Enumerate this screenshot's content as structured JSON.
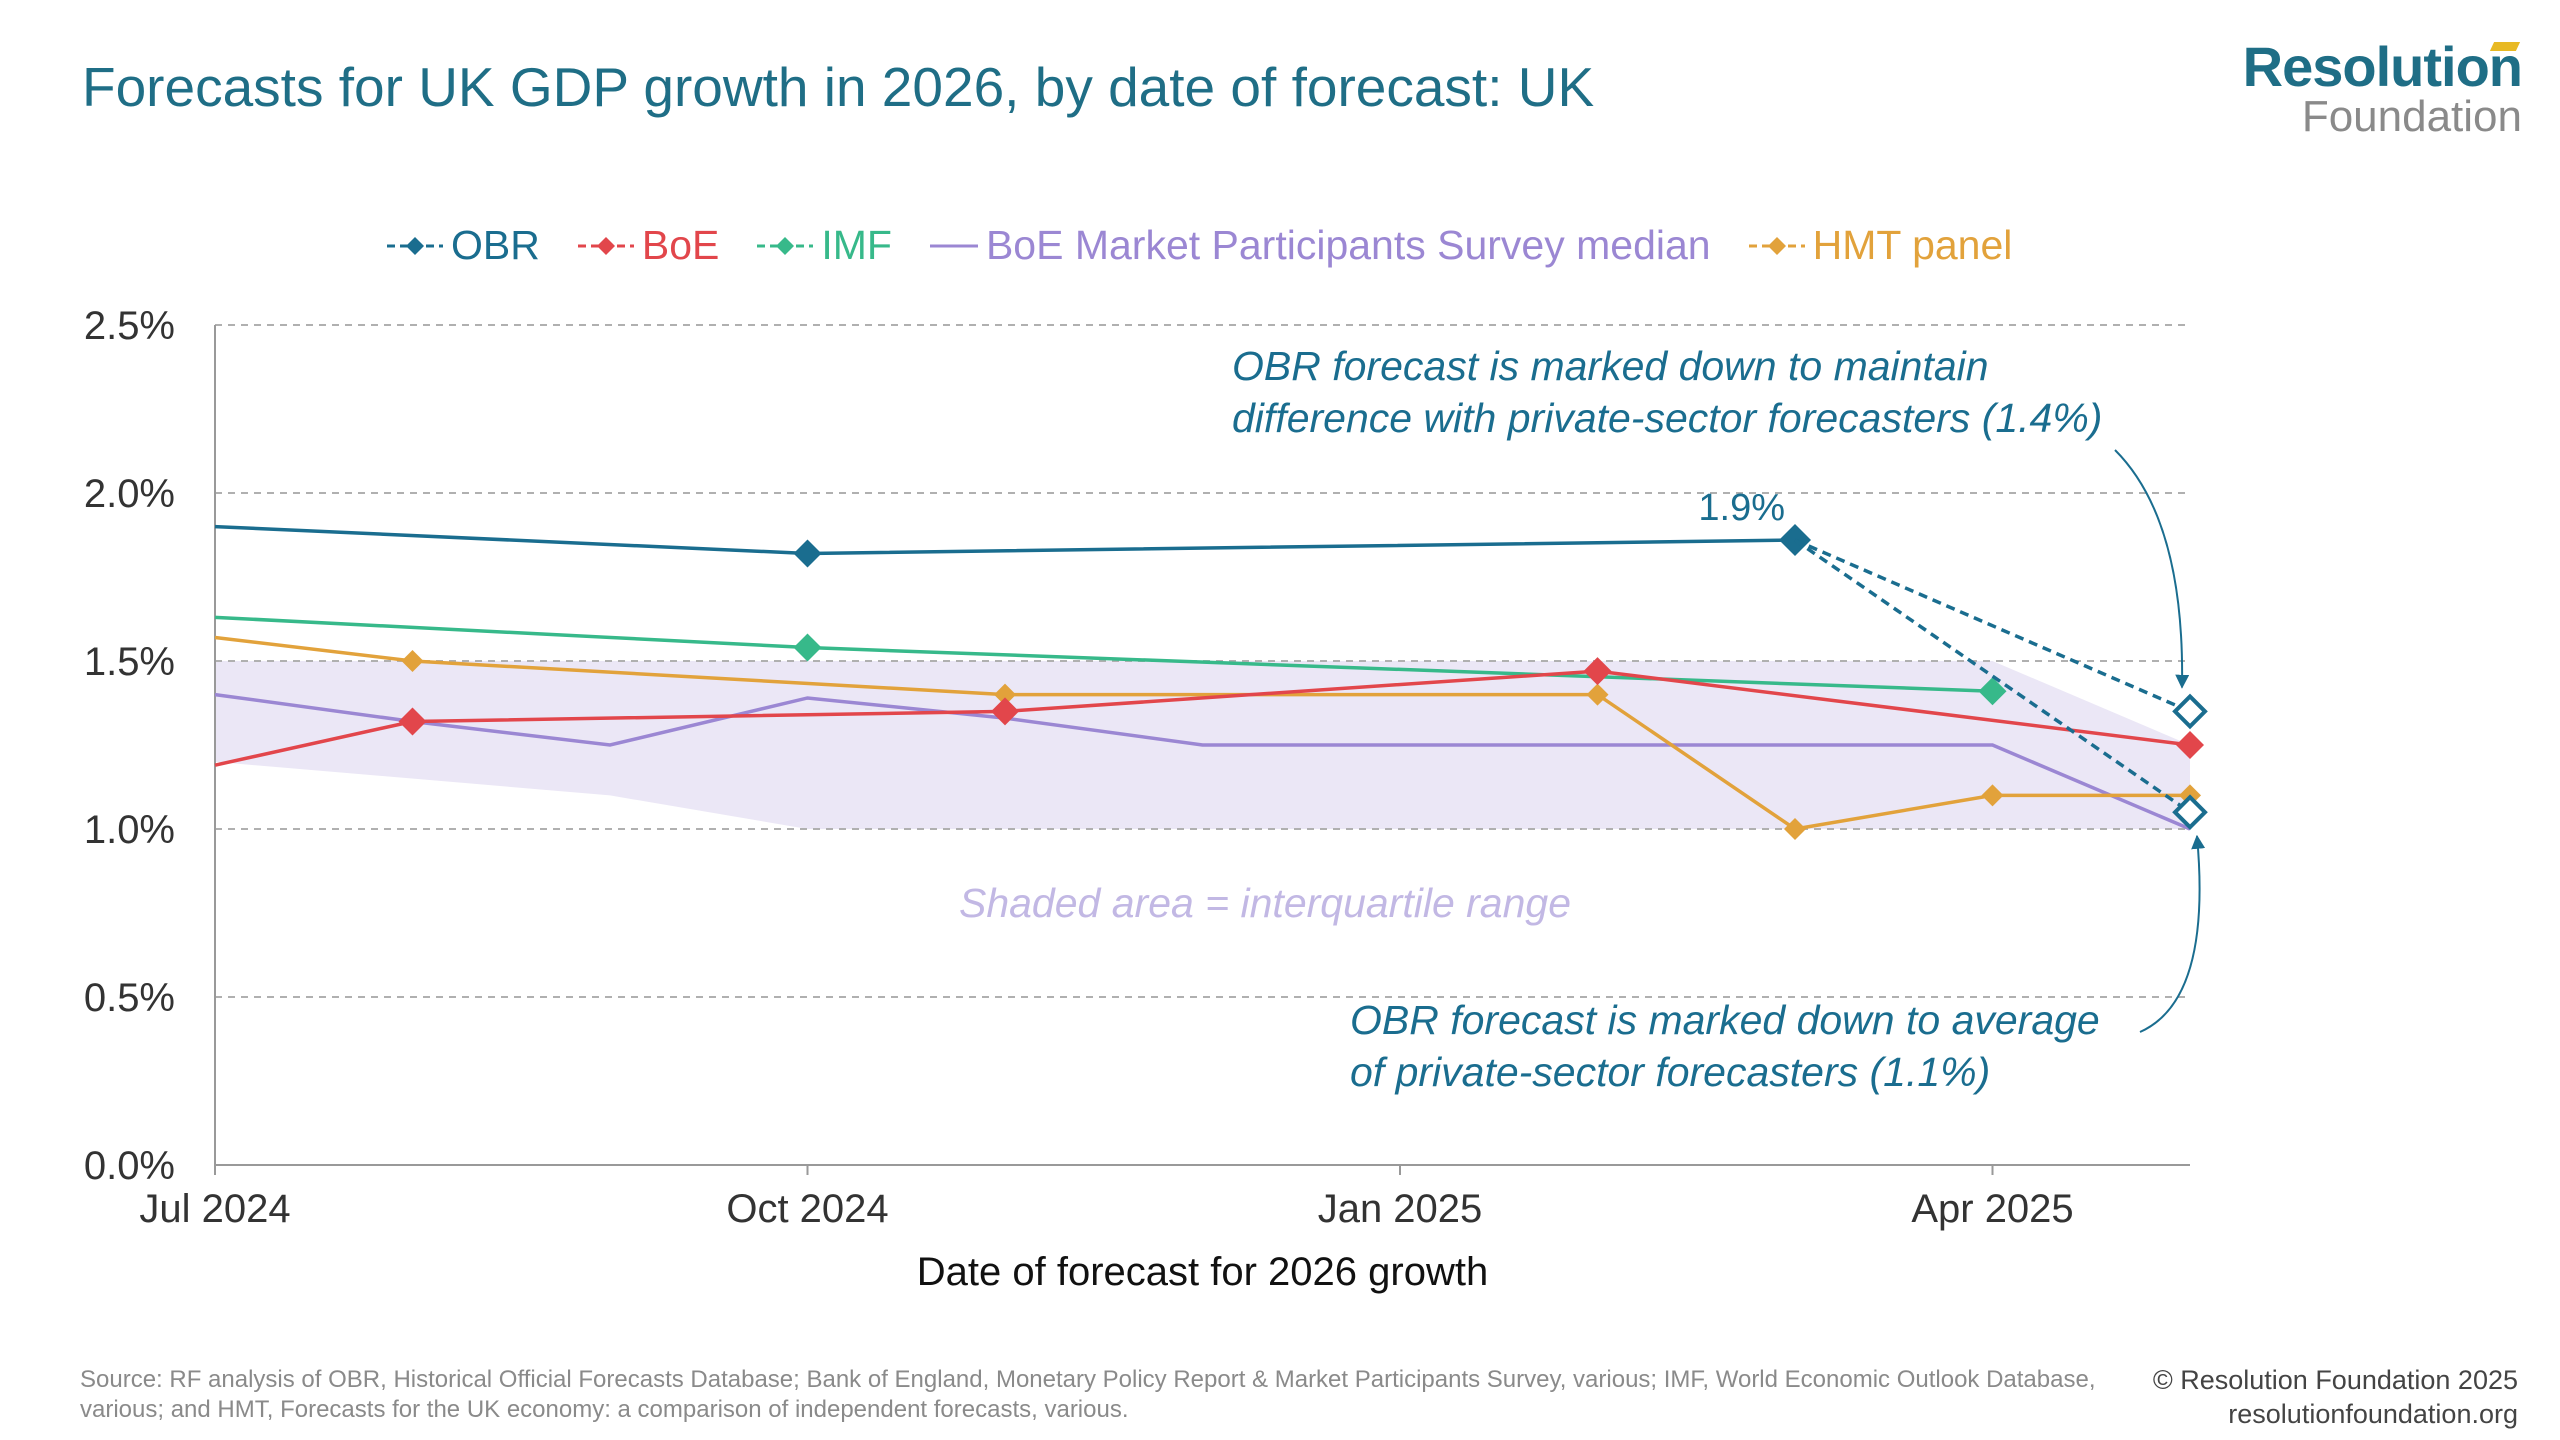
{
  "title": "Forecasts for UK GDP growth in 2026, by date of forecast: UK",
  "logo": {
    "line1": "Resolution",
    "line2": "Foundation"
  },
  "colors": {
    "obr": "#1a6d8f",
    "boe": "#e2464b",
    "imf": "#37b98a",
    "survey": "#9b87d3",
    "hmt": "#e2a23b",
    "shade": "#ebe7f6",
    "annotation": "#1a6d8f",
    "axis_text": "#333333",
    "grid": "#b0b0b0"
  },
  "chart_data": {
    "type": "line",
    "title": "Forecasts for UK GDP growth in 2026, by date of forecast: UK",
    "xlabel": "Date of forecast for 2026 growth",
    "ylabel": "",
    "x_ticks": [
      "Jul 2024",
      "Oct 2024",
      "Jan 2025",
      "Apr 2025"
    ],
    "x_tick_dates": [
      "2024-07",
      "2024-10",
      "2025-01",
      "2025-04"
    ],
    "x_range": [
      "2024-07",
      "2025-05"
    ],
    "ylim": [
      0,
      2.5
    ],
    "y_ticks": [
      "0.0%",
      "0.5%",
      "1.0%",
      "1.5%",
      "2.0%",
      "2.5%"
    ],
    "y_tick_values": [
      0,
      0.5,
      1.0,
      1.5,
      2.0,
      2.5
    ],
    "grid": "horizontal dashed",
    "legend_position": "top",
    "series": [
      {
        "name": "OBR",
        "key": "obr",
        "marker": "diamond",
        "legend_style": "dash-diamond",
        "points": [
          [
            "2024-07",
            1.9
          ],
          [
            "2024-10",
            1.82
          ],
          [
            "2025-03",
            1.86
          ]
        ]
      },
      {
        "name": "BoE",
        "key": "boe",
        "marker": "diamond",
        "legend_style": "dash-diamond",
        "points": [
          [
            "2024-07",
            1.19
          ],
          [
            "2024-08",
            1.32
          ],
          [
            "2024-11",
            1.35
          ],
          [
            "2025-02",
            1.47
          ],
          [
            "2025-05",
            1.25
          ]
        ]
      },
      {
        "name": "IMF",
        "key": "imf",
        "marker": "diamond",
        "legend_style": "dash-diamond",
        "points": [
          [
            "2024-07",
            1.63
          ],
          [
            "2024-10",
            1.54
          ],
          [
            "2025-04",
            1.41
          ]
        ]
      },
      {
        "name": "BoE Market Participants Survey median",
        "key": "survey",
        "marker": "none",
        "legend_style": "line",
        "points": [
          [
            "2024-07",
            1.4
          ],
          [
            "2024-08",
            1.32
          ],
          [
            "2024-09",
            1.25
          ],
          [
            "2024-10",
            1.39
          ],
          [
            "2024-11",
            1.33
          ],
          [
            "2024-12",
            1.25
          ],
          [
            "2025-01",
            1.25
          ],
          [
            "2025-02",
            1.25
          ],
          [
            "2025-03",
            1.25
          ],
          [
            "2025-04",
            1.25
          ],
          [
            "2025-05",
            1.0
          ]
        ]
      },
      {
        "name": "HMT panel",
        "key": "hmt",
        "marker": "diamond-small",
        "legend_style": "dash-diamond",
        "points": [
          [
            "2024-07",
            1.57
          ],
          [
            "2024-08",
            1.5
          ],
          [
            "2024-11",
            1.4
          ],
          [
            "2025-02",
            1.4
          ],
          [
            "2025-03",
            1.0
          ],
          [
            "2025-04",
            1.1
          ],
          [
            "2025-05",
            1.1
          ]
        ]
      }
    ],
    "interquartile_range": {
      "label": "Shaded area = interquartile range",
      "upper": [
        [
          "2024-07",
          1.5
        ],
        [
          "2025-04",
          1.5
        ],
        [
          "2025-05",
          1.25
        ]
      ],
      "lower": [
        [
          "2024-07",
          1.2
        ],
        [
          "2024-09",
          1.1
        ],
        [
          "2024-10",
          1.0
        ],
        [
          "2025-04",
          1.0
        ],
        [
          "2025-05",
          1.0
        ]
      ]
    },
    "obr_projections": [
      {
        "from": [
          "2025-03",
          1.86
        ],
        "to": [
          "2025-05",
          1.35
        ]
      },
      {
        "from": [
          "2025-03",
          1.86
        ],
        "to": [
          "2025-05",
          1.05
        ]
      }
    ],
    "annotations": [
      {
        "key": "obr_value",
        "text": "1.9%"
      },
      {
        "key": "upper_note",
        "lines": [
          "OBR forecast is marked down to maintain",
          "difference with private-sector forecasters (1.4%)"
        ]
      },
      {
        "key": "lower_note",
        "lines": [
          "OBR forecast is marked down to average",
          "of private-sector forecasters (1.1%)"
        ]
      }
    ]
  },
  "footer": {
    "source": "Source: RF analysis of OBR, Historical Official Forecasts Database; Bank of England, Monetary Policy Report & Market Participants Survey, various; IMF, World Economic Outlook Database, various; and HMT, Forecasts for the UK economy: a comparison of independent forecasts, various.",
    "copyright": "© Resolution Foundation 2025",
    "website": "resolutionfoundation.org"
  }
}
